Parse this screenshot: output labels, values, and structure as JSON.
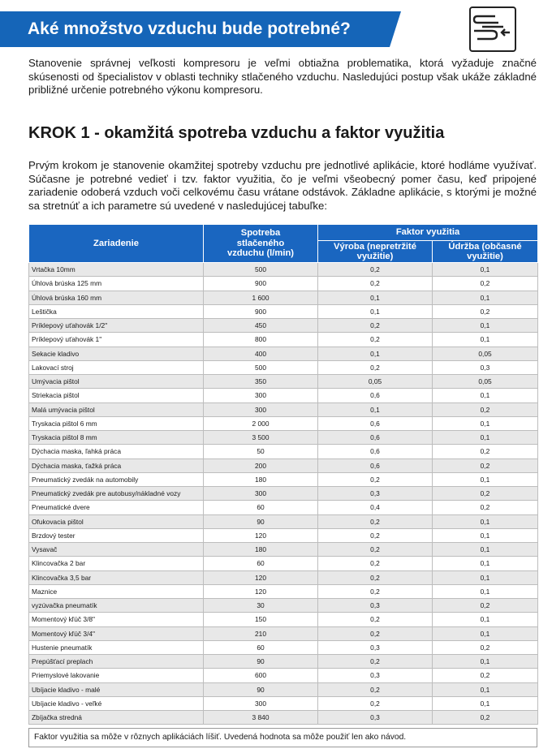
{
  "header": {
    "title": "Aké množstvo vzduchu bude potrebné?",
    "intro": "Stanovenie správnej veľkosti kompresoru je veľmi obtiažna problematika, ktorá vyžaduje značné skúsenosti od špecialistov v oblasti techniky stlačeného vzduchu. Nasledujúci postup však ukáže základné približné určenie potrebného výkonu kompresoru."
  },
  "step": {
    "title": "KROK 1 - okamžitá spotreba vzduchu a faktor využitia",
    "text": "Prvým krokom je stanovenie okamžitej spotreby vzduchu pre jednotlivé aplikácie, ktoré hodláme využívať. Súčasne je potrebné vedieť i tzv. faktor využitia, čo je veľmi všeobecný pomer času, keď pripojené zariadenie odoberá vzduch voči celkovému času vrátane odstávok. Základne aplikácie, s ktorými je možné sa stretnúť a ich parametre sú uvedené v nasledujúcej tabuľke:"
  },
  "table": {
    "col_device": "Zariadenie",
    "col_consumption": "Spotreba stlačeného vzduchu (l/min)",
    "col_factor": "Faktor využitia",
    "col_production": "Výroba (nepretržité využitie)",
    "col_maintenance": "Údržba (občasné využitie)",
    "rows": [
      {
        "name": "Vrtačka 10mm",
        "flow": "500",
        "prod": "0,2",
        "maint": "0,1"
      },
      {
        "name": "Úhlová brúska 125 mm",
        "flow": "900",
        "prod": "0,2",
        "maint": "0,2"
      },
      {
        "name": "Úhlová brúska 160 mm",
        "flow": "1 600",
        "prod": "0,1",
        "maint": "0,1"
      },
      {
        "name": "Leštička",
        "flow": "900",
        "prod": "0,1",
        "maint": "0,2"
      },
      {
        "name": "Príklepový uťahovák 1/2\"",
        "flow": "450",
        "prod": "0,2",
        "maint": "0,1"
      },
      {
        "name": "Príklepový uťahovák 1\"",
        "flow": "800",
        "prod": "0,2",
        "maint": "0,1"
      },
      {
        "name": "Sekacie kladivo",
        "flow": "400",
        "prod": "0,1",
        "maint": "0,05"
      },
      {
        "name": "Lakovací stroj",
        "flow": "500",
        "prod": "0,2",
        "maint": "0,3"
      },
      {
        "name": "Umývacia pištol",
        "flow": "350",
        "prod": "0,05",
        "maint": "0,05"
      },
      {
        "name": "Striekacia pištol",
        "flow": "300",
        "prod": "0,6",
        "maint": "0,1"
      },
      {
        "name": "Malá umývacia pištol",
        "flow": "300",
        "prod": "0,1",
        "maint": "0,2"
      },
      {
        "name": "Tryskacia pištol 6 mm",
        "flow": "2 000",
        "prod": "0,6",
        "maint": "0,1"
      },
      {
        "name": "Tryskacia pištol 8 mm",
        "flow": "3 500",
        "prod": "0,6",
        "maint": "0,1"
      },
      {
        "name": "Dýchacia maska, ľahká práca",
        "flow": "50",
        "prod": "0,6",
        "maint": "0,2"
      },
      {
        "name": "Dýchacia maska, ťažká práca",
        "flow": "200",
        "prod": "0,6",
        "maint": "0,2"
      },
      {
        "name": "Pneumatický zvedák na automobily",
        "flow": "180",
        "prod": "0,2",
        "maint": "0,1"
      },
      {
        "name": "Pneumatický zvedák pre autobusy/nákladné vozy",
        "flow": "300",
        "prod": "0,3",
        "maint": "0,2"
      },
      {
        "name": "Pneumatické dvere",
        "flow": "60",
        "prod": "0,4",
        "maint": "0,2"
      },
      {
        "name": "Ofukovacia pištol",
        "flow": "90",
        "prod": "0,2",
        "maint": "0,1"
      },
      {
        "name": "Brzdový tester",
        "flow": "120",
        "prod": "0,2",
        "maint": "0,1"
      },
      {
        "name": "Vysavač",
        "flow": "180",
        "prod": "0,2",
        "maint": "0,1"
      },
      {
        "name": "Klincovačka 2 bar",
        "flow": "60",
        "prod": "0,2",
        "maint": "0,1"
      },
      {
        "name": "Klincovačka 3,5 bar",
        "flow": "120",
        "prod": "0,2",
        "maint": "0,1"
      },
      {
        "name": "Maznice",
        "flow": "120",
        "prod": "0,2",
        "maint": "0,1"
      },
      {
        "name": "vyzúvačka pneumatík",
        "flow": "30",
        "prod": "0,3",
        "maint": "0,2"
      },
      {
        "name": "Momentový kľúč 3/8\"",
        "flow": "150",
        "prod": "0,2",
        "maint": "0,1"
      },
      {
        "name": "Momentový kľúč 3/4\"",
        "flow": "210",
        "prod": "0,2",
        "maint": "0,1"
      },
      {
        "name": "Hustenie pneumatík",
        "flow": "60",
        "prod": "0,3",
        "maint": "0,2"
      },
      {
        "name": "Prepúšťací preplach",
        "flow": "90",
        "prod": "0,2",
        "maint": "0,1"
      },
      {
        "name": "Priemyslové lakovanie",
        "flow": "600",
        "prod": "0,3",
        "maint": "0,2"
      },
      {
        "name": "Ubíjacie kladivo - malé",
        "flow": "90",
        "prod": "0,2",
        "maint": "0,1"
      },
      {
        "name": "Ubíjacie kladivo - veľké",
        "flow": "300",
        "prod": "0,2",
        "maint": "0,1"
      },
      {
        "name": "Zbíjačka stredná",
        "flow": "3 840",
        "prod": "0,3",
        "maint": "0,2"
      }
    ]
  },
  "note": "Faktor využitia sa môže v rôznych aplikáciách líšiť. Uvedená hodnota sa môže použiť len ako návod."
}
